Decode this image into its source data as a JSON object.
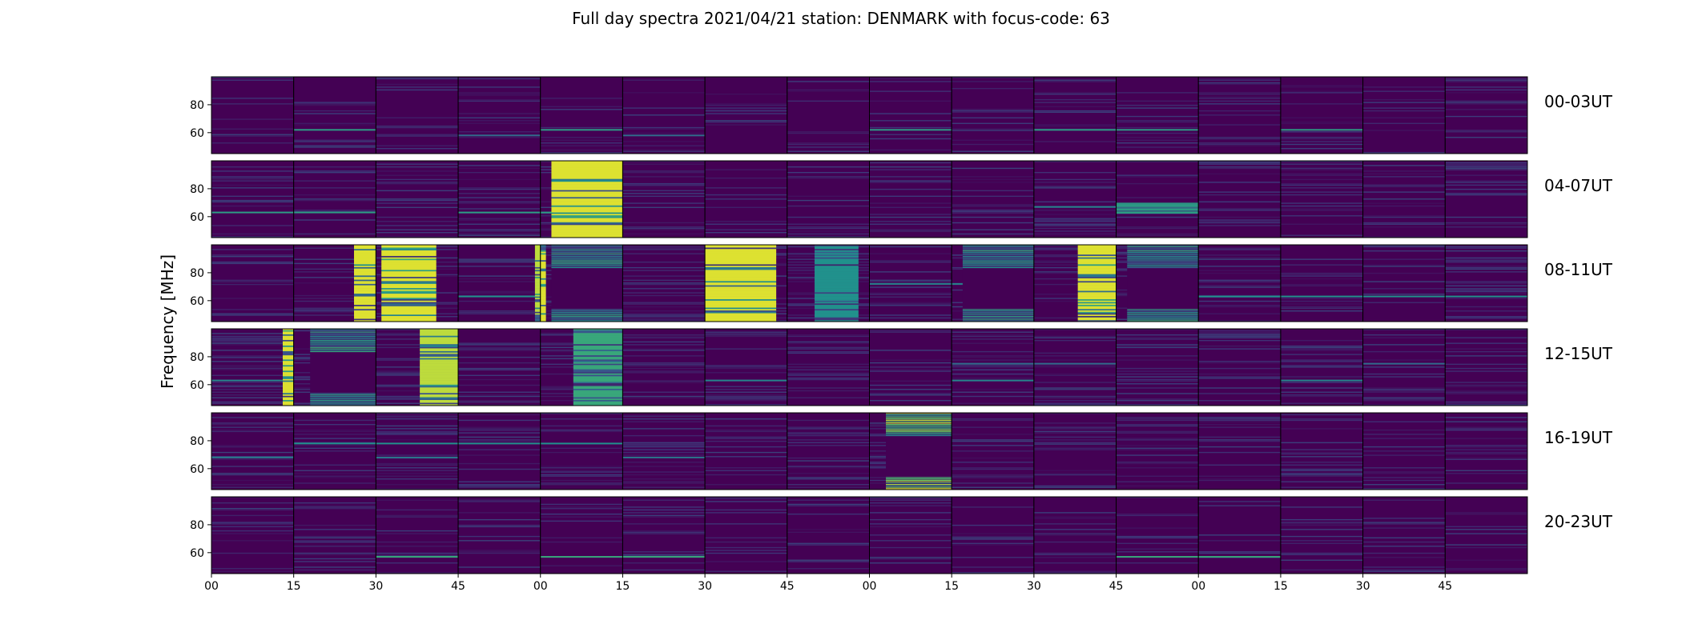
{
  "chart_data": {
    "type": "heatmap",
    "title": "Full day spectra 2021/04/21 station: DENMARK with focus-code: 63",
    "ylabel": "Frequency [MHz]",
    "xlabel": "",
    "ylim": [
      45,
      100
    ],
    "yticks": [
      60,
      80
    ],
    "x_tick_labels": [
      "00",
      "15",
      "30",
      "45",
      "00",
      "15",
      "30",
      "45",
      "00",
      "15",
      "30",
      "45",
      "00",
      "15",
      "30",
      "45"
    ],
    "minutes_per_panel": 15,
    "colormap": [
      "#440154",
      "#3b528b",
      "#21918c",
      "#5ec962",
      "#fde725"
    ],
    "background_color": "#440154",
    "rows": [
      {
        "label": "00-03UT",
        "bursts": [],
        "lines": [
          {
            "freq": 62,
            "intensity": 0.55,
            "panels": [
              1,
              4,
              8,
              10,
              11,
              13
            ]
          },
          {
            "freq": 58,
            "intensity": 0.35,
            "panels": [
              3,
              5
            ]
          }
        ],
        "noise": 0.22
      },
      {
        "label": "04-07UT",
        "bursts": [
          {
            "panel": 4,
            "start_min": 2,
            "end_min": 15,
            "fmin": 45,
            "fmax": 100,
            "intensity": 0.95,
            "style": "banded"
          },
          {
            "panel": 11,
            "start_min": 0,
            "end_min": 15,
            "fmin": 62,
            "fmax": 70,
            "intensity": 0.55,
            "style": "banded"
          }
        ],
        "lines": [
          {
            "freq": 63,
            "intensity": 0.55,
            "panels": [
              0,
              1,
              3,
              4
            ]
          },
          {
            "freq": 67,
            "intensity": 0.45,
            "panels": [
              10,
              11
            ]
          }
        ],
        "noise": 0.3
      },
      {
        "label": "08-11UT",
        "bursts": [
          {
            "panel": 1,
            "start_min": 11,
            "end_min": 15,
            "fmin": 45,
            "fmax": 100,
            "intensity": 0.95,
            "style": "banded"
          },
          {
            "panel": 2,
            "start_min": 1,
            "end_min": 11,
            "fmin": 45,
            "fmax": 100,
            "intensity": 0.95,
            "style": "banded"
          },
          {
            "panel": 3,
            "start_min": 14,
            "end_min": 15,
            "fmin": 45,
            "fmax": 100,
            "intensity": 0.9,
            "style": "banded"
          },
          {
            "panel": 4,
            "start_min": 0,
            "end_min": 1,
            "fmin": 45,
            "fmax": 100,
            "intensity": 0.95,
            "style": "banded"
          },
          {
            "panel": 4,
            "start_min": 2,
            "end_min": 15,
            "fmin": 45,
            "fmax": 100,
            "intensity": 0.6,
            "style": "hollow"
          },
          {
            "panel": 6,
            "start_min": 0,
            "end_min": 13,
            "fmin": 45,
            "fmax": 100,
            "intensity": 0.95,
            "style": "banded"
          },
          {
            "panel": 7,
            "start_min": 5,
            "end_min": 13,
            "fmin": 45,
            "fmax": 100,
            "intensity": 0.5,
            "style": "banded"
          },
          {
            "panel": 9,
            "start_min": 2,
            "end_min": 15,
            "fmin": 45,
            "fmax": 100,
            "intensity": 0.6,
            "style": "hollow"
          },
          {
            "panel": 10,
            "start_min": 8,
            "end_min": 15,
            "fmin": 45,
            "fmax": 100,
            "intensity": 0.95,
            "style": "banded"
          },
          {
            "panel": 11,
            "start_min": 2,
            "end_min": 15,
            "fmin": 45,
            "fmax": 100,
            "intensity": 0.6,
            "style": "hollow"
          }
        ],
        "lines": [
          {
            "freq": 72,
            "intensity": 0.45,
            "panels": [
              8,
              9
            ]
          },
          {
            "freq": 63,
            "intensity": 0.5,
            "panels": [
              3,
              12,
              13,
              14,
              15
            ]
          }
        ],
        "noise": 0.3
      },
      {
        "label": "12-15UT",
        "bursts": [
          {
            "panel": 0,
            "start_min": 13,
            "end_min": 15,
            "fmin": 45,
            "fmax": 100,
            "intensity": 0.95,
            "style": "banded"
          },
          {
            "panel": 1,
            "start_min": 3,
            "end_min": 15,
            "fmin": 45,
            "fmax": 100,
            "intensity": 0.6,
            "style": "hollow"
          },
          {
            "panel": 2,
            "start_min": 8,
            "end_min": 15,
            "fmin": 45,
            "fmax": 100,
            "intensity": 0.9,
            "style": "banded"
          },
          {
            "panel": 4,
            "start_min": 6,
            "end_min": 15,
            "fmin": 45,
            "fmax": 100,
            "intensity": 0.6,
            "style": "banded"
          }
        ],
        "lines": [
          {
            "freq": 63,
            "intensity": 0.45,
            "panels": [
              0,
              6,
              9,
              13
            ]
          },
          {
            "freq": 75,
            "intensity": 0.35,
            "panels": [
              9,
              10,
              14
            ]
          }
        ],
        "noise": 0.35
      },
      {
        "label": "16-19UT",
        "bursts": [
          {
            "panel": 8,
            "start_min": 3,
            "end_min": 15,
            "fmin": 45,
            "fmax": 100,
            "intensity": 0.95,
            "style": "hollow"
          }
        ],
        "lines": [
          {
            "freq": 78,
            "intensity": 0.5,
            "panels": [
              1,
              2,
              3,
              4
            ]
          },
          {
            "freq": 68,
            "intensity": 0.4,
            "panels": [
              0,
              2,
              5
            ]
          }
        ],
        "noise": 0.32
      },
      {
        "label": "20-23UT",
        "bursts": [],
        "lines": [
          {
            "freq": 57,
            "intensity": 0.6,
            "panels": [
              2,
              4,
              5,
              11,
              12
            ]
          }
        ],
        "noise": 0.2
      }
    ]
  }
}
